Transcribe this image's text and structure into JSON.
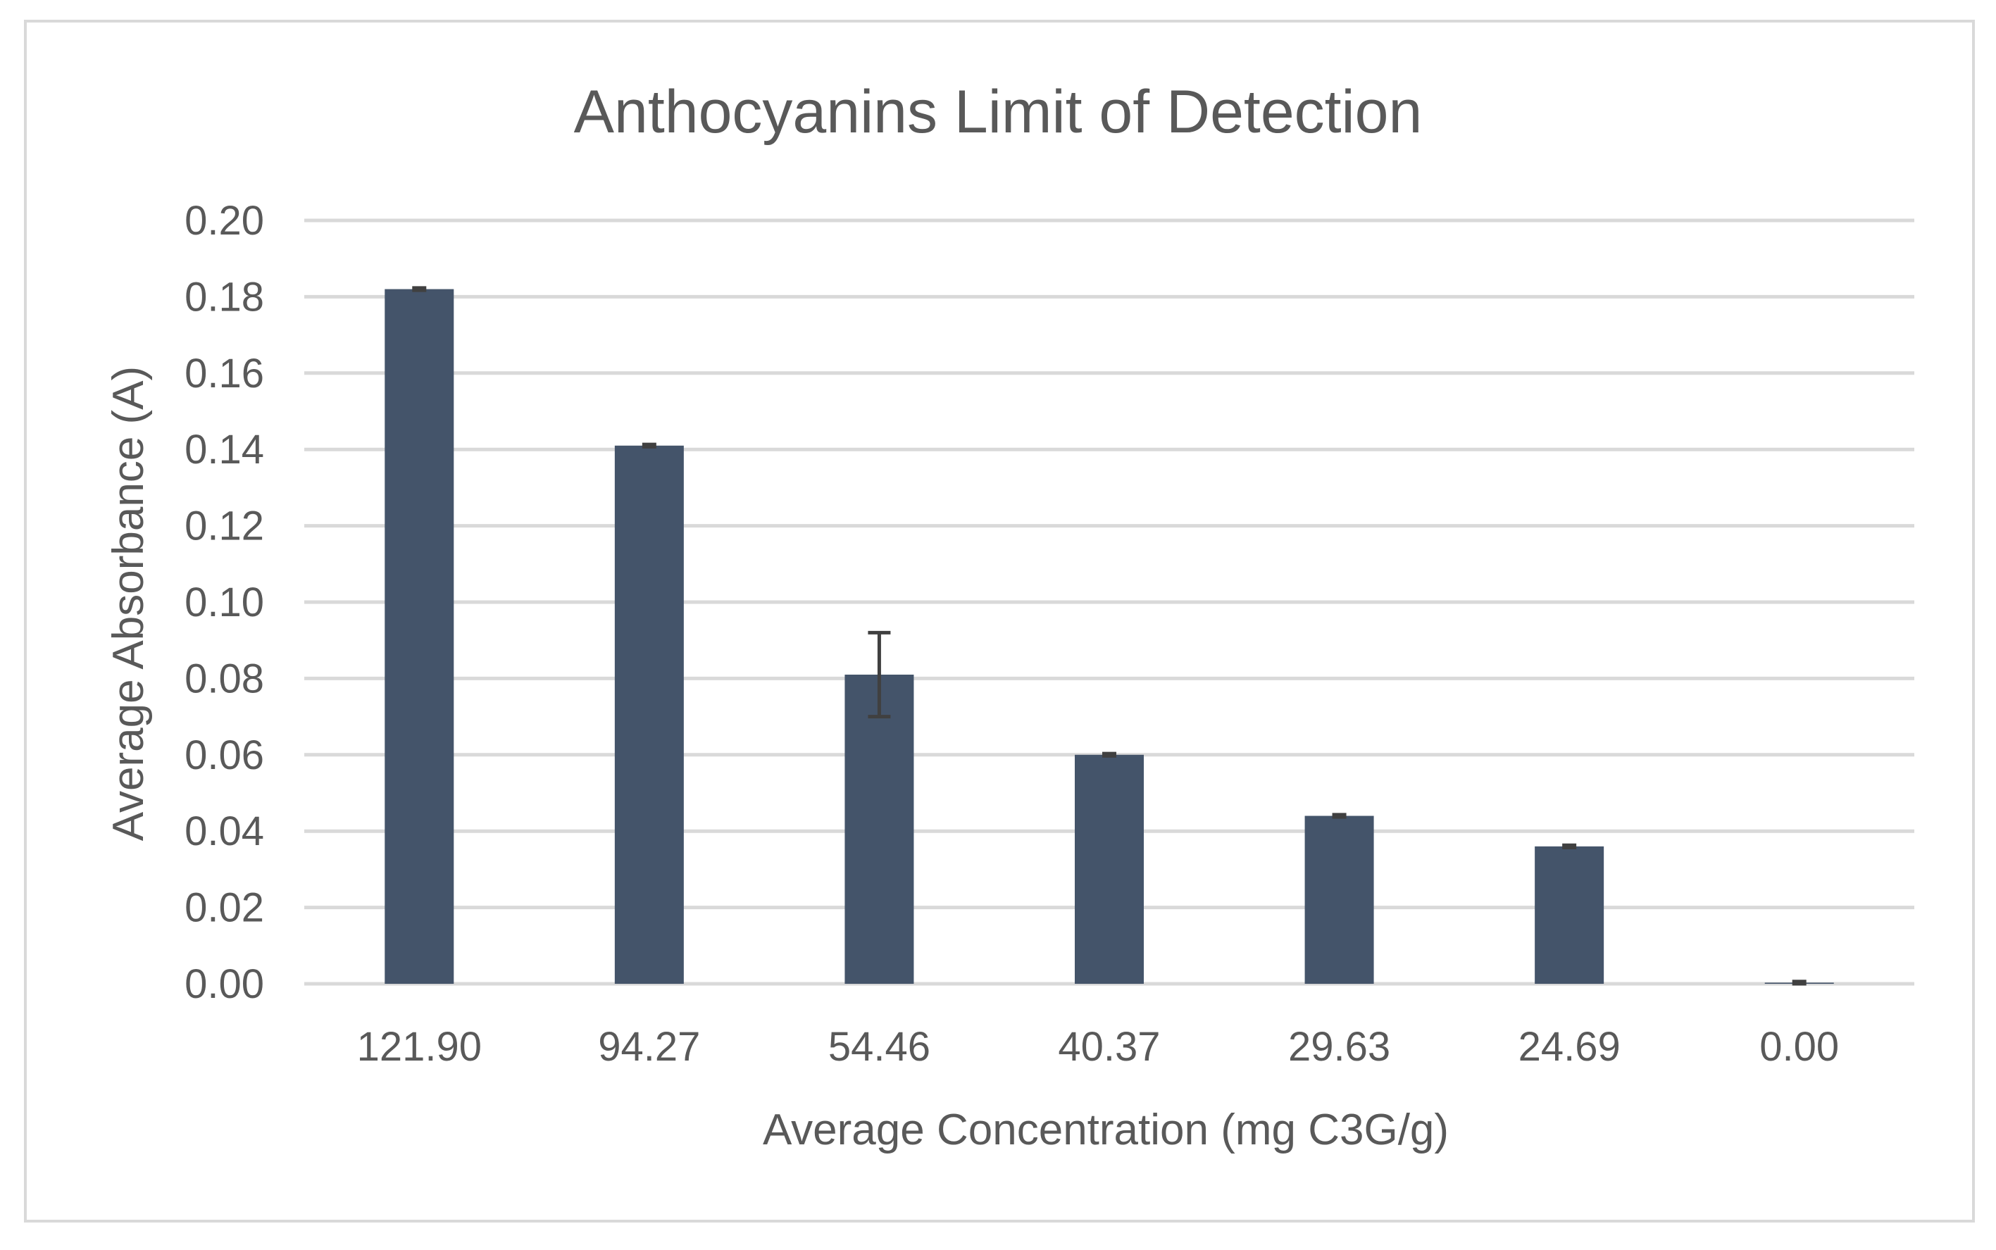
{
  "chart_data": {
    "type": "bar",
    "title": "Anthocyanins Limit of Detection",
    "xlabel": "Average Concentration (mg C3G/g)",
    "ylabel": "Average Absorbance (A)",
    "ylim": [
      0,
      0.2
    ],
    "ytick_step": 0.02,
    "yticks": [
      "0.00",
      "0.02",
      "0.04",
      "0.06",
      "0.08",
      "0.10",
      "0.12",
      "0.14",
      "0.16",
      "0.18",
      "0.20"
    ],
    "grid": true,
    "categories": [
      "121.90",
      "94.27",
      "54.46",
      "40.37",
      "29.63",
      "24.69",
      "0.00"
    ],
    "values": [
      0.182,
      0.141,
      0.081,
      0.06,
      0.044,
      0.036,
      0.0003
    ],
    "error": [
      0.0003,
      0.0003,
      0.011,
      0.0003,
      0.0003,
      0.0003,
      0.0003
    ],
    "bar_color": "#44546a",
    "grid_color": "#d9d9d9",
    "text_color": "#595959"
  }
}
